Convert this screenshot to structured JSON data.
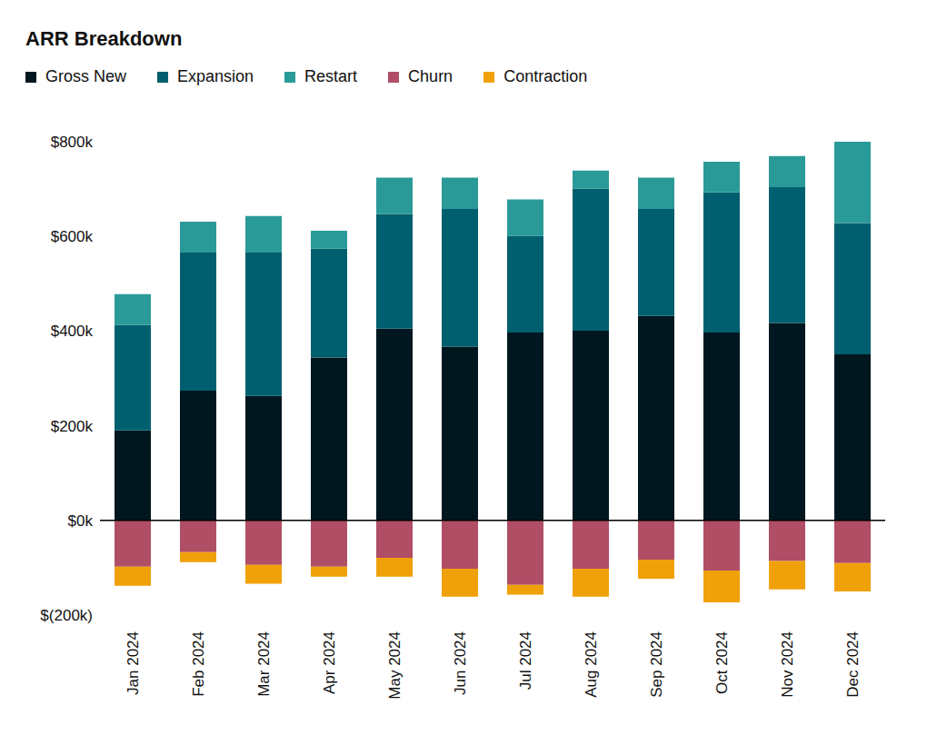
{
  "chart_data": {
    "type": "bar",
    "title": "ARR Breakdown",
    "categories": [
      "Jan 2024",
      "Feb 2024",
      "Mar 2024",
      "Apr 2024",
      "May 2024",
      "Jun 2024",
      "Jul 2024",
      "Aug 2024",
      "Sep 2024",
      "Oct 2024",
      "Nov 2024",
      "Dec 2024"
    ],
    "series": [
      {
        "name": "Gross New",
        "color": "#00171f",
        "values": [
          190,
          274,
          263,
          344,
          405,
          367,
          397,
          401,
          432,
          397,
          417,
          351
        ]
      },
      {
        "name": "Expansion",
        "color": "#005f6e",
        "values": [
          223,
          292,
          303,
          230,
          242,
          291,
          204,
          300,
          226,
          296,
          287,
          277
        ]
      },
      {
        "name": "Restart",
        "color": "#2a9a98",
        "values": [
          65,
          65,
          77,
          38,
          77,
          66,
          77,
          38,
          66,
          65,
          66,
          172
        ]
      },
      {
        "name": "Churn",
        "color": "#b04e65",
        "values": [
          -98,
          -67,
          -94,
          -98,
          -79,
          -102,
          -136,
          -102,
          -83,
          -106,
          -86,
          -90
        ]
      },
      {
        "name": "Contraction",
        "color": "#f0a10a",
        "values": [
          -40,
          -21,
          -40,
          -21,
          -40,
          -59,
          -21,
          -59,
          -40,
          -67,
          -60,
          -60
        ]
      }
    ],
    "ylim": [
      -200,
      800
    ],
    "yticks": [
      {
        "value": -200,
        "label": "$(200k)"
      },
      {
        "value": 0,
        "label": "$0k"
      },
      {
        "value": 200,
        "label": "$200k"
      },
      {
        "value": 400,
        "label": "$400k"
      },
      {
        "value": 600,
        "label": "$600k"
      },
      {
        "value": 800,
        "label": "$800k"
      }
    ],
    "stacked": true,
    "legend": "top",
    "grid": false
  }
}
